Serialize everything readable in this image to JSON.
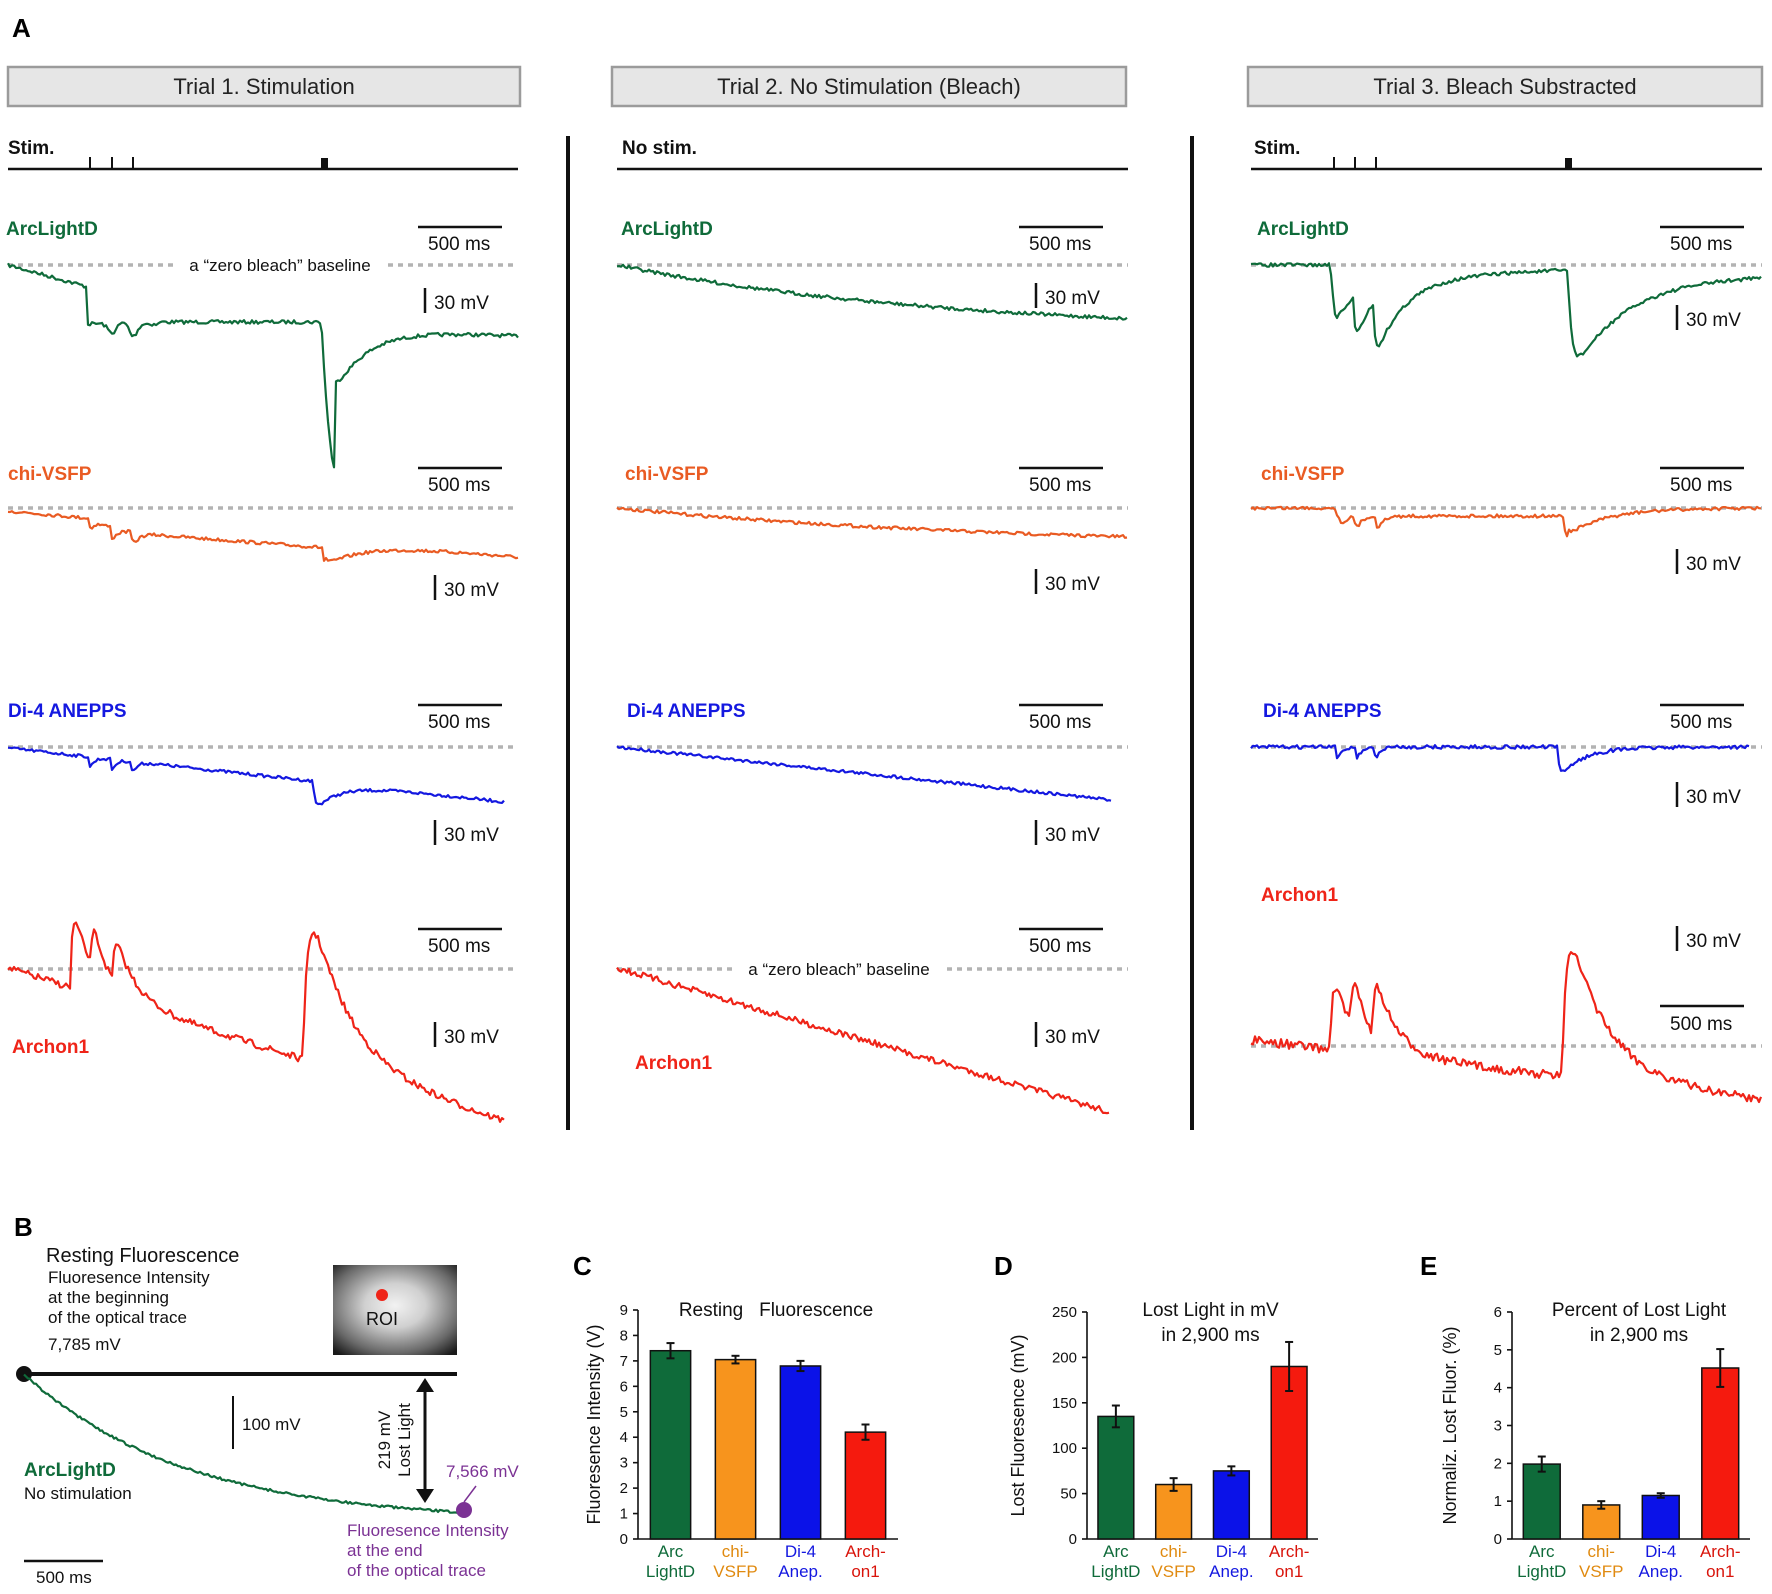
{
  "panel_letters": {
    "a": "A",
    "b": "B",
    "c": "C",
    "d": "D",
    "e": "E"
  },
  "trials": [
    {
      "title": "Trial 1. Stimulation",
      "stim_label": "Stim.",
      "stimulated": true
    },
    {
      "title": "Trial 2. No Stimulation (Bleach)",
      "stim_label": "No stim.",
      "stimulated": false
    },
    {
      "title": "Trial 3. Bleach Substracted",
      "stim_label": "Stim.",
      "stimulated": true
    }
  ],
  "dyes": [
    {
      "name": "ArcLightD",
      "color": "#0f6b3a"
    },
    {
      "name": "chi-VSFP",
      "color": "#e95b23"
    },
    {
      "name": "Di-4 ANEPPS",
      "color": "#1418e0"
    },
    {
      "name": "Archon1",
      "color": "#ef2418"
    }
  ],
  "scale_bars": {
    "time": "500 ms",
    "voltage": "30 mV"
  },
  "baseline_annotation": "a “zero bleach” baseline",
  "panel_b": {
    "heading": "Resting Fluorescence",
    "desc_lines": [
      "Fluoresence Intensity",
      "at the beginning",
      "of the optical trace"
    ],
    "start_value": "7,785 mV",
    "end_value": "7,566 mV",
    "end_desc_lines": [
      "Fluoresence Intensity",
      "at the end",
      "of the optical trace"
    ],
    "lost_light_lines": [
      "219 mV",
      "Lost Light"
    ],
    "v_scale": "100 mV",
    "t_scale": "500 ms",
    "roi_label": "ROI",
    "trace_label": "ArcLightD",
    "trace_sublabel": "No stimulation",
    "end_color": "#7b3294"
  },
  "chart_data": [
    {
      "type": "bar",
      "panel": "C",
      "title": "Resting   Fluorescence",
      "ylabel": "Fluoresence Intensity (V)",
      "categories": [
        [
          "Arc",
          "LightD"
        ],
        [
          "chi-",
          "VSFP"
        ],
        [
          "Di-4",
          "Anep."
        ],
        [
          "Arch-",
          "on1"
        ]
      ],
      "values": [
        7.4,
        7.05,
        6.8,
        4.2
      ],
      "errors": [
        0.3,
        0.15,
        0.2,
        0.3
      ],
      "colors": [
        "#0f6b3a",
        "#f7941d",
        "#0b12e8",
        "#f51a0e"
      ],
      "label_colors": [
        "#0f6b3a",
        "#e08a10",
        "#1418e0",
        "#d9140b"
      ],
      "ylim": [
        0,
        9
      ],
      "yticks": [
        0,
        1,
        2,
        3,
        4,
        5,
        6,
        7,
        8,
        9
      ]
    },
    {
      "type": "bar",
      "panel": "D",
      "title": [
        "Lost Light in mV",
        "in 2,900 ms"
      ],
      "ylabel": "Lost Fluoresence (mV)",
      "categories": [
        [
          "Arc",
          "LightD"
        ],
        [
          "chi-",
          "VSFP"
        ],
        [
          "Di-4",
          "Anep."
        ],
        [
          "Arch-",
          "on1"
        ]
      ],
      "values": [
        135,
        60,
        75,
        190
      ],
      "errors": [
        12,
        7,
        5,
        27
      ],
      "colors": [
        "#0f6b3a",
        "#f7941d",
        "#0b12e8",
        "#f51a0e"
      ],
      "label_colors": [
        "#0f6b3a",
        "#e08a10",
        "#1418e0",
        "#d9140b"
      ],
      "ylim": [
        0,
        250
      ],
      "yticks": [
        0,
        50,
        100,
        150,
        200,
        250
      ]
    },
    {
      "type": "bar",
      "panel": "E",
      "title": [
        "Percent of Lost Light",
        "in 2,900 ms"
      ],
      "ylabel": "Normaliz. Lost Fluor. (%)",
      "categories": [
        [
          "Arc",
          "LightD"
        ],
        [
          "chi-",
          "VSFP"
        ],
        [
          "Di-4",
          "Anep."
        ],
        [
          "Arch-",
          "on1"
        ]
      ],
      "values": [
        1.98,
        0.9,
        1.15,
        4.52
      ],
      "errors": [
        0.2,
        0.1,
        0.06,
        0.5
      ],
      "colors": [
        "#0f6b3a",
        "#f7941d",
        "#0b12e8",
        "#f51a0e"
      ],
      "label_colors": [
        "#0f6b3a",
        "#e08a10",
        "#1418e0",
        "#d9140b"
      ],
      "ylim": [
        0,
        6
      ],
      "yticks": [
        0,
        1,
        2,
        3,
        4,
        5,
        6
      ]
    }
  ]
}
